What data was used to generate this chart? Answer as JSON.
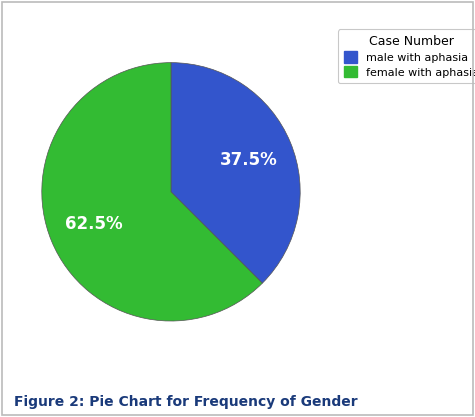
{
  "slices": [
    37.5,
    62.5
  ],
  "labels": [
    "male with aphasia",
    "female with aphasia"
  ],
  "colors": [
    "#3355cc",
    "#33bb33"
  ],
  "legend_title": "Case Number",
  "figure_caption": "Figure 2: Pie Chart for Frequency of Gender",
  "caption_color": "#1a3a7a",
  "caption_fontsize": 10,
  "pct_fontsize": 12,
  "legend_fontsize": 8,
  "legend_title_fontsize": 9,
  "startangle": 90,
  "background_color": "#ffffff",
  "border_color": "#bbbbbb"
}
